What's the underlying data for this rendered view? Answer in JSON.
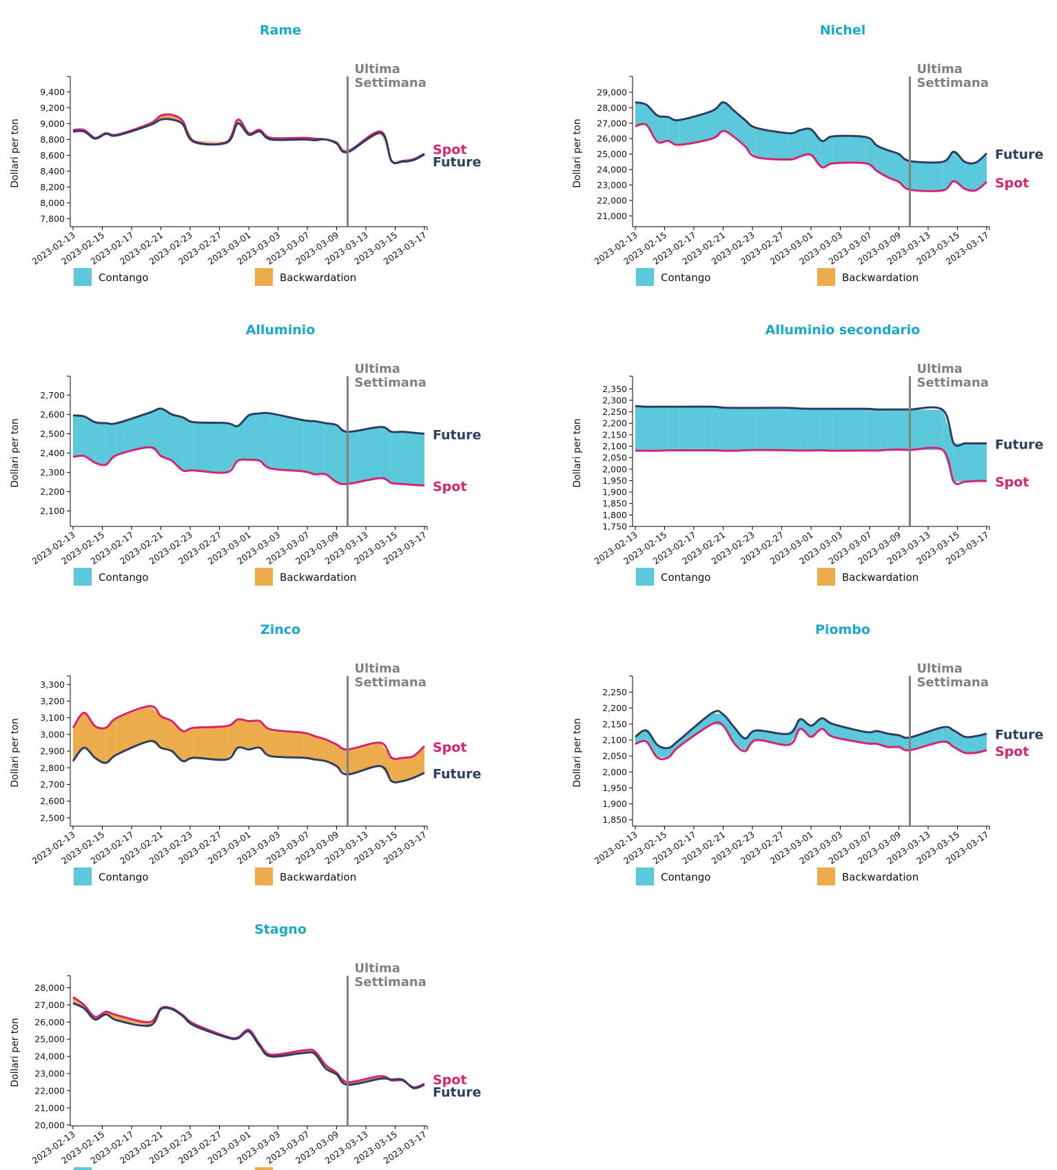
{
  "colors": {
    "title": "#17a9c9",
    "contango": "#5bc8dc",
    "backwardation": "#edac4c",
    "spot": "#d6246e",
    "future": "#2c3e63",
    "marker": "#808080"
  },
  "legend": {
    "contango": "Contango",
    "backwardation": "Backwardation"
  },
  "marker_label": [
    "Ultima",
    "Settimana"
  ],
  "marker_date": "2023-03-10",
  "series_labels": {
    "spot": "Spot",
    "future": "Future"
  },
  "chart_data": [
    {
      "type": "area",
      "title": "Rame",
      "ylabel": "Dollari per ton",
      "ylim": [
        7700,
        9550
      ],
      "yticks": [
        7800,
        8000,
        8200,
        8400,
        8600,
        8800,
        9000,
        9200,
        9400
      ],
      "x": [
        "2023-02-13",
        "2023-02-14",
        "2023-02-15",
        "2023-02-16",
        "2023-02-17",
        "2023-02-20",
        "2023-02-21",
        "2023-02-22",
        "2023-02-23",
        "2023-02-24",
        "2023-02-27",
        "2023-02-28",
        "2023-03-01",
        "2023-03-02",
        "2023-03-03",
        "2023-03-06",
        "2023-03-07",
        "2023-03-08",
        "2023-03-09",
        "2023-03-10",
        "2023-03-13",
        "2023-03-14",
        "2023-03-15",
        "2023-03-16",
        "2023-03-17"
      ],
      "xticks": [
        "2023-02-13",
        "2023-02-15",
        "2023-02-17",
        "2023-02-21",
        "2023-02-23",
        "2023-02-27",
        "2023-03-01",
        "2023-03-03",
        "2023-03-07",
        "2023-03-09",
        "2023-03-13",
        "2023-03-15",
        "2023-03-17"
      ],
      "series": [
        {
          "name": "Spot",
          "values": [
            8920,
            8920,
            8820,
            8880,
            8860,
            9000,
            9100,
            9110,
            9030,
            8780,
            8770,
            9050,
            8880,
            8920,
            8820,
            8820,
            8810,
            8800,
            8760,
            8650,
            8900,
            8530,
            8530,
            8550,
            8620
          ]
        },
        {
          "name": "Future",
          "values": [
            8900,
            8900,
            8810,
            8870,
            8850,
            8980,
            9050,
            9050,
            8990,
            8770,
            8760,
            9000,
            8860,
            8900,
            8800,
            8800,
            8790,
            8800,
            8750,
            8640,
            8880,
            8530,
            8520,
            8540,
            8610
          ]
        }
      ]
    },
    {
      "type": "area",
      "title": "Nichel",
      "ylabel": "Dollari per ton",
      "ylim": [
        20300,
        29800
      ],
      "yticks": [
        21000,
        22000,
        23000,
        24000,
        25000,
        26000,
        27000,
        28000,
        29000
      ],
      "x": [
        "2023-02-13",
        "2023-02-14",
        "2023-02-15",
        "2023-02-16",
        "2023-02-17",
        "2023-02-20",
        "2023-02-21",
        "2023-02-22",
        "2023-02-23",
        "2023-02-24",
        "2023-02-27",
        "2023-02-28",
        "2023-03-01",
        "2023-03-02",
        "2023-03-03",
        "2023-03-06",
        "2023-03-07",
        "2023-03-08",
        "2023-03-09",
        "2023-03-10",
        "2023-03-13",
        "2023-03-14",
        "2023-03-15",
        "2023-03-16",
        "2023-03-17"
      ],
      "xticks": [
        "2023-02-13",
        "2023-02-15",
        "2023-02-17",
        "2023-02-21",
        "2023-02-23",
        "2023-02-27",
        "2023-03-01",
        "2023-03-03",
        "2023-03-07",
        "2023-03-09",
        "2023-03-13",
        "2023-03-15",
        "2023-03-17"
      ],
      "series": [
        {
          "name": "Spot",
          "values": [
            26800,
            26900,
            25800,
            25850,
            25600,
            26000,
            26500,
            26100,
            25500,
            24800,
            24650,
            24850,
            24950,
            24150,
            24400,
            24400,
            23900,
            23500,
            23200,
            22700,
            22650,
            23250,
            22750,
            22650,
            23200
          ]
        },
        {
          "name": "Future",
          "values": [
            28350,
            28200,
            27500,
            27400,
            27200,
            27800,
            28350,
            27800,
            27200,
            26700,
            26350,
            26550,
            26600,
            25850,
            26150,
            26100,
            25550,
            25250,
            25000,
            24550,
            24500,
            25150,
            24500,
            24450,
            25050
          ]
        }
      ]
    },
    {
      "type": "area",
      "title": "Alluminio",
      "ylabel": "Dollari per ton",
      "ylim": [
        2020,
        2780
      ],
      "yticks": [
        2100,
        2200,
        2300,
        2400,
        2500,
        2600,
        2700
      ],
      "x": [
        "2023-02-13",
        "2023-02-14",
        "2023-02-15",
        "2023-02-16",
        "2023-02-17",
        "2023-02-20",
        "2023-02-21",
        "2023-02-22",
        "2023-02-23",
        "2023-02-24",
        "2023-02-27",
        "2023-02-28",
        "2023-03-01",
        "2023-03-02",
        "2023-03-03",
        "2023-03-06",
        "2023-03-07",
        "2023-03-08",
        "2023-03-09",
        "2023-03-10",
        "2023-03-13",
        "2023-03-14",
        "2023-03-15",
        "2023-03-16",
        "2023-03-17"
      ],
      "xticks": [
        "2023-02-13",
        "2023-02-15",
        "2023-02-17",
        "2023-02-21",
        "2023-02-23",
        "2023-02-27",
        "2023-03-01",
        "2023-03-03",
        "2023-03-07",
        "2023-03-09",
        "2023-03-13",
        "2023-03-15",
        "2023-03-17"
      ],
      "series": [
        {
          "name": "Spot",
          "values": [
            2380,
            2385,
            2350,
            2340,
            2390,
            2430,
            2385,
            2360,
            2310,
            2310,
            2300,
            2360,
            2365,
            2360,
            2320,
            2305,
            2290,
            2290,
            2250,
            2240,
            2270,
            2245,
            2240,
            2235,
            2232
          ]
        },
        {
          "name": "Future",
          "values": [
            2595,
            2590,
            2560,
            2555,
            2555,
            2610,
            2630,
            2600,
            2585,
            2560,
            2555,
            2540,
            2595,
            2605,
            2605,
            2570,
            2565,
            2555,
            2545,
            2510,
            2535,
            2510,
            2510,
            2505,
            2500
          ]
        }
      ]
    },
    {
      "type": "area",
      "title": "Alluminio secondario",
      "ylabel": "Dollari per ton",
      "ylim": [
        1750,
        2390
      ],
      "yticks": [
        1750,
        1800,
        1850,
        1900,
        1950,
        2000,
        2050,
        2100,
        2150,
        2200,
        2250,
        2300,
        2350
      ],
      "x": [
        "2023-02-13",
        "2023-02-14",
        "2023-02-15",
        "2023-02-16",
        "2023-02-17",
        "2023-02-20",
        "2023-02-21",
        "2023-02-22",
        "2023-02-23",
        "2023-02-24",
        "2023-02-27",
        "2023-02-28",
        "2023-03-01",
        "2023-03-02",
        "2023-03-03",
        "2023-03-06",
        "2023-03-07",
        "2023-03-08",
        "2023-03-09",
        "2023-03-10",
        "2023-03-13",
        "2023-03-14",
        "2023-03-15",
        "2023-03-16",
        "2023-03-17"
      ],
      "xticks": [
        "2023-02-13",
        "2023-02-15",
        "2023-02-17",
        "2023-02-21",
        "2023-02-23",
        "2023-02-27",
        "2023-03-01",
        "2023-03-03",
        "2023-03-07",
        "2023-03-09",
        "2023-03-13",
        "2023-03-15",
        "2023-03-17"
      ],
      "series": [
        {
          "name": "Spot",
          "values": [
            2080,
            2080,
            2080,
            2082,
            2082,
            2082,
            2080,
            2080,
            2082,
            2083,
            2082,
            2081,
            2081,
            2082,
            2080,
            2081,
            2081,
            2084,
            2085,
            2083,
            2083,
            1945,
            1945,
            1948,
            1948
          ]
        },
        {
          "name": "Future",
          "values": [
            2275,
            2272,
            2272,
            2272,
            2272,
            2272,
            2268,
            2267,
            2267,
            2267,
            2267,
            2264,
            2263,
            2263,
            2263,
            2263,
            2260,
            2260,
            2260,
            2260,
            2258,
            2112,
            2112,
            2112,
            2112
          ]
        }
      ]
    },
    {
      "type": "area",
      "title": "Zinco",
      "ylabel": "Dollari per ton",
      "ylim": [
        2450,
        3330
      ],
      "yticks": [
        2500,
        2600,
        2700,
        2800,
        2900,
        3000,
        3100,
        3200,
        3300
      ],
      "x": [
        "2023-02-13",
        "2023-02-14",
        "2023-02-15",
        "2023-02-16",
        "2023-02-17",
        "2023-02-20",
        "2023-02-21",
        "2023-02-22",
        "2023-02-23",
        "2023-02-24",
        "2023-02-27",
        "2023-02-28",
        "2023-03-01",
        "2023-03-02",
        "2023-03-03",
        "2023-03-06",
        "2023-03-07",
        "2023-03-08",
        "2023-03-09",
        "2023-03-10",
        "2023-03-13",
        "2023-03-14",
        "2023-03-15",
        "2023-03-16",
        "2023-03-17"
      ],
      "xticks": [
        "2023-02-13",
        "2023-02-15",
        "2023-02-17",
        "2023-02-21",
        "2023-02-23",
        "2023-02-27",
        "2023-03-01",
        "2023-03-03",
        "2023-03-07",
        "2023-03-09",
        "2023-03-13",
        "2023-03-15",
        "2023-03-17"
      ],
      "series": [
        {
          "name": "Spot",
          "values": [
            3040,
            3130,
            3050,
            3040,
            3100,
            3170,
            3110,
            3080,
            3020,
            3040,
            3050,
            3090,
            3080,
            3080,
            3030,
            3010,
            2990,
            2970,
            2940,
            2910,
            2950,
            2860,
            2860,
            2870,
            2930
          ]
        },
        {
          "name": "Future",
          "values": [
            2840,
            2920,
            2860,
            2830,
            2880,
            2960,
            2920,
            2900,
            2840,
            2860,
            2850,
            2920,
            2910,
            2920,
            2870,
            2860,
            2850,
            2840,
            2810,
            2760,
            2810,
            2720,
            2720,
            2740,
            2770
          ]
        }
      ]
    },
    {
      "type": "area",
      "title": "Piombo",
      "ylabel": "Dollari per ton",
      "ylim": [
        1830,
        2290
      ],
      "yticks": [
        1850,
        1900,
        1950,
        2000,
        2050,
        2100,
        2150,
        2200,
        2250
      ],
      "x": [
        "2023-02-13",
        "2023-02-14",
        "2023-02-15",
        "2023-02-16",
        "2023-02-17",
        "2023-02-20",
        "2023-02-21",
        "2023-02-22",
        "2023-02-23",
        "2023-02-24",
        "2023-02-27",
        "2023-02-28",
        "2023-03-01",
        "2023-03-02",
        "2023-03-03",
        "2023-03-06",
        "2023-03-07",
        "2023-03-08",
        "2023-03-09",
        "2023-03-10",
        "2023-03-13",
        "2023-03-14",
        "2023-03-15",
        "2023-03-16",
        "2023-03-17"
      ],
      "xticks": [
        "2023-02-13",
        "2023-02-15",
        "2023-02-17",
        "2023-02-21",
        "2023-02-23",
        "2023-02-27",
        "2023-03-01",
        "2023-03-03",
        "2023-03-07",
        "2023-03-09",
        "2023-03-13",
        "2023-03-15",
        "2023-03-17"
      ],
      "series": [
        {
          "name": "Spot",
          "values": [
            2088,
            2095,
            2045,
            2045,
            2080,
            2150,
            2145,
            2090,
            2065,
            2100,
            2085,
            2135,
            2110,
            2135,
            2110,
            2090,
            2088,
            2078,
            2078,
            2068,
            2095,
            2078,
            2060,
            2060,
            2068
          ]
        },
        {
          "name": "Future",
          "values": [
            2110,
            2130,
            2085,
            2075,
            2100,
            2185,
            2180,
            2140,
            2105,
            2130,
            2120,
            2165,
            2145,
            2168,
            2150,
            2125,
            2128,
            2120,
            2115,
            2108,
            2140,
            2130,
            2110,
            2112,
            2120
          ]
        }
      ]
    },
    {
      "type": "area",
      "title": "Stagno",
      "ylabel": "Dollari per ton",
      "ylim": [
        19950,
        28500
      ],
      "yticks": [
        20000,
        21000,
        22000,
        23000,
        24000,
        25000,
        26000,
        27000,
        28000
      ],
      "x": [
        "2023-02-13",
        "2023-02-14",
        "2023-02-15",
        "2023-02-16",
        "2023-02-17",
        "2023-02-20",
        "2023-02-21",
        "2023-02-22",
        "2023-02-23",
        "2023-02-24",
        "2023-02-27",
        "2023-02-28",
        "2023-03-01",
        "2023-03-02",
        "2023-03-03",
        "2023-03-06",
        "2023-03-07",
        "2023-03-08",
        "2023-03-09",
        "2023-03-10",
        "2023-03-13",
        "2023-03-14",
        "2023-03-15",
        "2023-03-16",
        "2023-03-17"
      ],
      "xticks": [
        "2023-02-13",
        "2023-02-15",
        "2023-02-17",
        "2023-02-21",
        "2023-02-23",
        "2023-02-27",
        "2023-03-01",
        "2023-03-03",
        "2023-03-07",
        "2023-03-09",
        "2023-03-13",
        "2023-03-15",
        "2023-03-17"
      ],
      "series": [
        {
          "name": "Spot",
          "values": [
            27450,
            27000,
            26300,
            26600,
            26400,
            26000,
            26800,
            26800,
            26400,
            25900,
            25150,
            25100,
            25550,
            24700,
            24100,
            24350,
            24300,
            23500,
            23050,
            22500,
            22850,
            22600,
            22600,
            22200,
            22400
          ]
        },
        {
          "name": "Future",
          "values": [
            27100,
            26800,
            26150,
            26450,
            26100,
            25800,
            26750,
            26750,
            26350,
            25800,
            25100,
            25050,
            25450,
            24600,
            24000,
            24200,
            24150,
            23300,
            22950,
            22350,
            22700,
            22650,
            22650,
            22150,
            22350
          ]
        }
      ]
    }
  ]
}
